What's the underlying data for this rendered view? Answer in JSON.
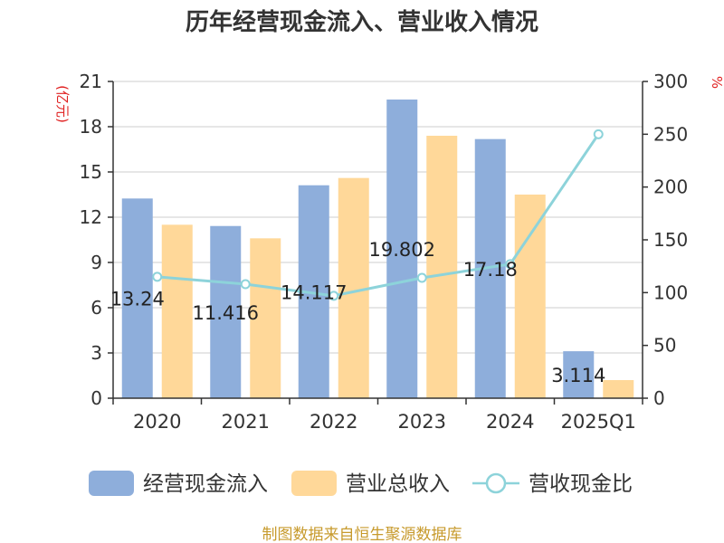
{
  "chart_data": {
    "type": "bar",
    "title": "历年经营现金流入、营业收入情况",
    "categories": [
      "2020",
      "2021",
      "2022",
      "2023",
      "2024",
      "2025Q1"
    ],
    "series": [
      {
        "name": "经营现金流入",
        "kind": "bar",
        "axis": "left",
        "color": "#8eaedb",
        "values": [
          13.24,
          11.416,
          14.117,
          19.802,
          17.18,
          3.114
        ]
      },
      {
        "name": "营业总收入",
        "kind": "bar",
        "axis": "left",
        "color": "#ffd899",
        "values": [
          11.5,
          10.6,
          14.6,
          17.4,
          13.5,
          1.2
        ]
      },
      {
        "name": "营收现金比",
        "kind": "line",
        "axis": "right",
        "color": "#8dd3da",
        "values": [
          115,
          108,
          97,
          114,
          127,
          250
        ]
      }
    ],
    "data_labels": [
      "13.24",
      "11.416",
      "14.117",
      "19.802",
      "17.18",
      "3.114"
    ],
    "y_left": {
      "unit": "(亿元)",
      "ticks": [
        0,
        3,
        6,
        9,
        12,
        15,
        18,
        21
      ],
      "ylim": [
        0,
        21
      ]
    },
    "y_right": {
      "unit": "%",
      "ticks": [
        0,
        50,
        100,
        150,
        200,
        250,
        300
      ],
      "ylim": [
        0,
        300
      ]
    },
    "legend_position": "bottom"
  },
  "source": "制图数据来自恒生聚源数据库"
}
